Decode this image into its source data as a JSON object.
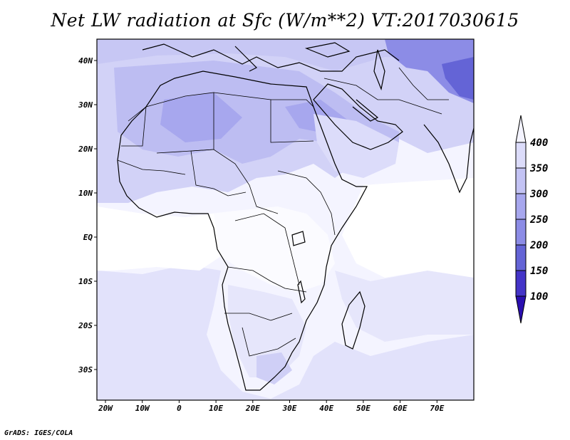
{
  "title": "Net LW radiation at Sfc (W/m**2) VT:2017030615",
  "footer": "GrADS: IGES/COLA",
  "map": {
    "lon_range": [
      -22,
      80
    ],
    "lat_range": [
      -37,
      46
    ],
    "x_ticks": [
      "20W",
      "10W",
      "0",
      "10E",
      "20E",
      "30E",
      "40E",
      "50E",
      "60E",
      "70E"
    ],
    "y_ticks": [
      "40N",
      "30N",
      "20N",
      "10N",
      "EQ",
      "10S",
      "20S",
      "30S"
    ]
  },
  "colorbar": {
    "levels": [
      "400",
      "350",
      "300",
      "250",
      "200",
      "150",
      "100"
    ],
    "colors": [
      "#f4f4ff",
      "#dcdcfa",
      "#c3c3f4",
      "#a7a7ee",
      "#8c8ce6",
      "#6464d6",
      "#4434c8",
      "#2a0fb0"
    ]
  }
}
